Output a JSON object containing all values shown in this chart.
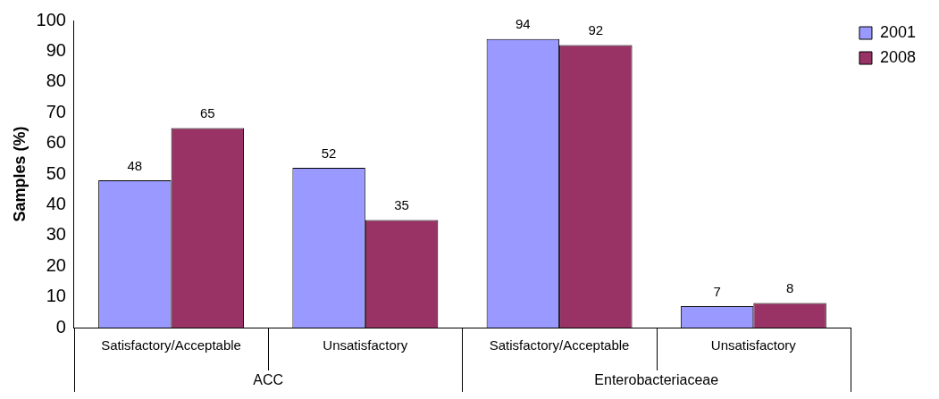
{
  "chart_data": {
    "type": "bar",
    "ylabel": "Samples (%)",
    "categories": [
      "Satisfactory/Acceptable",
      "Unsatisfactory",
      "Satisfactory/Acceptable",
      "Unsatisfactory"
    ],
    "annotations": [
      "ACC",
      "Enterobacteriaceae"
    ],
    "series": [
      {
        "name": "2001",
        "color": "#9999ff",
        "values": [
          48,
          52,
          94,
          7
        ]
      },
      {
        "name": "2008",
        "color": "#993366",
        "values": [
          65,
          35,
          92,
          8
        ]
      }
    ],
    "ylim": [
      0,
      100
    ],
    "yticks": [
      0,
      10,
      20,
      30,
      40,
      50,
      60,
      70,
      80,
      90,
      100
    ],
    "data_labels": true,
    "legend": "top right",
    "grid": false
  }
}
